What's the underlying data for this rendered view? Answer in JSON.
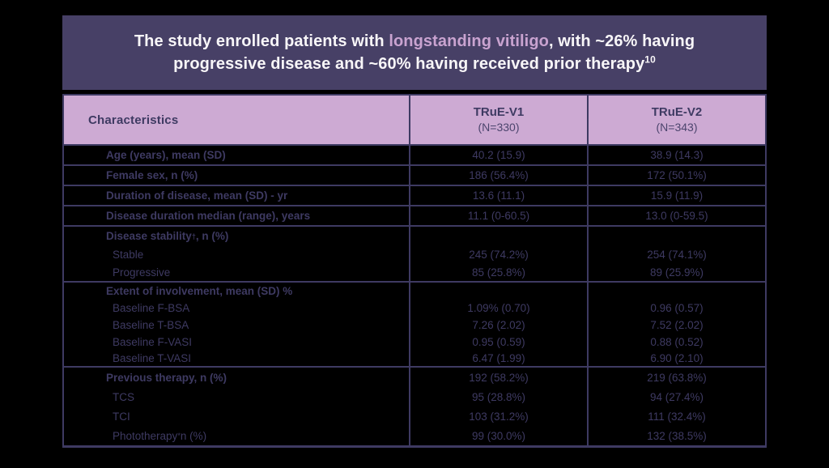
{
  "title_banner": {
    "seg1": "The study enrolled patients with ",
    "highlight": "longstanding vitiligo",
    "seg2": ", with ~26% having",
    "line2": "progressive disease and ~60% having received prior therapy",
    "sup": "10",
    "bg_color": "#474066",
    "text_color": "#f8f6f8",
    "highlight_color": "#c9a3d0"
  },
  "table": {
    "accent_color": "#3e3a62",
    "header_bg_color": "#cdaad3",
    "header": {
      "characteristics": "Characteristics",
      "col1_name": "TRuE-V1",
      "col1_n": "(N=330)",
      "col2_name": "TRuE-V2",
      "col2_n": "(N=343)"
    },
    "rows": [
      {
        "label": "Age (years), mean (SD)",
        "v1": "40.2 (15.9)",
        "v2": "38.9 (14.3)"
      },
      {
        "label": "Female sex, n (%)",
        "v1": "186 (56.4%)",
        "v2": "172 (50.1%)"
      },
      {
        "label": "Duration of disease, mean (SD) - yr",
        "v1": "13.6 (11.1)",
        "v2": "15.9 (11.9)"
      },
      {
        "label": "Disease duration median (range), years",
        "v1": "11.1 (0-60.5)",
        "v2": "13.0 (0-59.5)"
      },
      {
        "label_pre": "Disease stability",
        "label_sup": "†",
        "label_post": ", n (%)",
        "v1": "",
        "v2": ""
      },
      {
        "label": "Stable",
        "v1": "245 (74.2%)",
        "v2": "254 (74.1%)"
      },
      {
        "label": "Progressive",
        "v1": "85 (25.8%)",
        "v2": "89 (25.9%)"
      },
      {
        "label": "Extent of involvement, mean (SD) %",
        "v1": "",
        "v2": ""
      },
      {
        "label": "Baseline F-BSA",
        "v1": "1.09% (0.70)",
        "v2": "0.96 (0.57)"
      },
      {
        "label": "Baseline T-BSA",
        "v1": "7.26 (2.02)",
        "v2": "7.52 (2.02)"
      },
      {
        "label": "Baseline F-VASI",
        "v1": "0.95 (0.59)",
        "v2": "0.88 (0.52)"
      },
      {
        "label": "Baseline T-VASI",
        "v1": "6.47 (1.99)",
        "v2": "6.90 (2.10)"
      },
      {
        "label": "Previous therapy, n (%)",
        "v1": "192 (58.2%)",
        "v2": "219 (63.8%)"
      },
      {
        "label": "TCS",
        "v1": "95 (28.8%)",
        "v2": "94 (27.4%)"
      },
      {
        "label": "TCI",
        "v1": "103 (31.2%)",
        "v2": "111 (32.4%)"
      },
      {
        "label_pre": "Phototherapy",
        "label_sup": "*",
        "label_post": " n (%)",
        "v1": "99 (30.0%)",
        "v2": "132 (38.5%)"
      }
    ]
  }
}
